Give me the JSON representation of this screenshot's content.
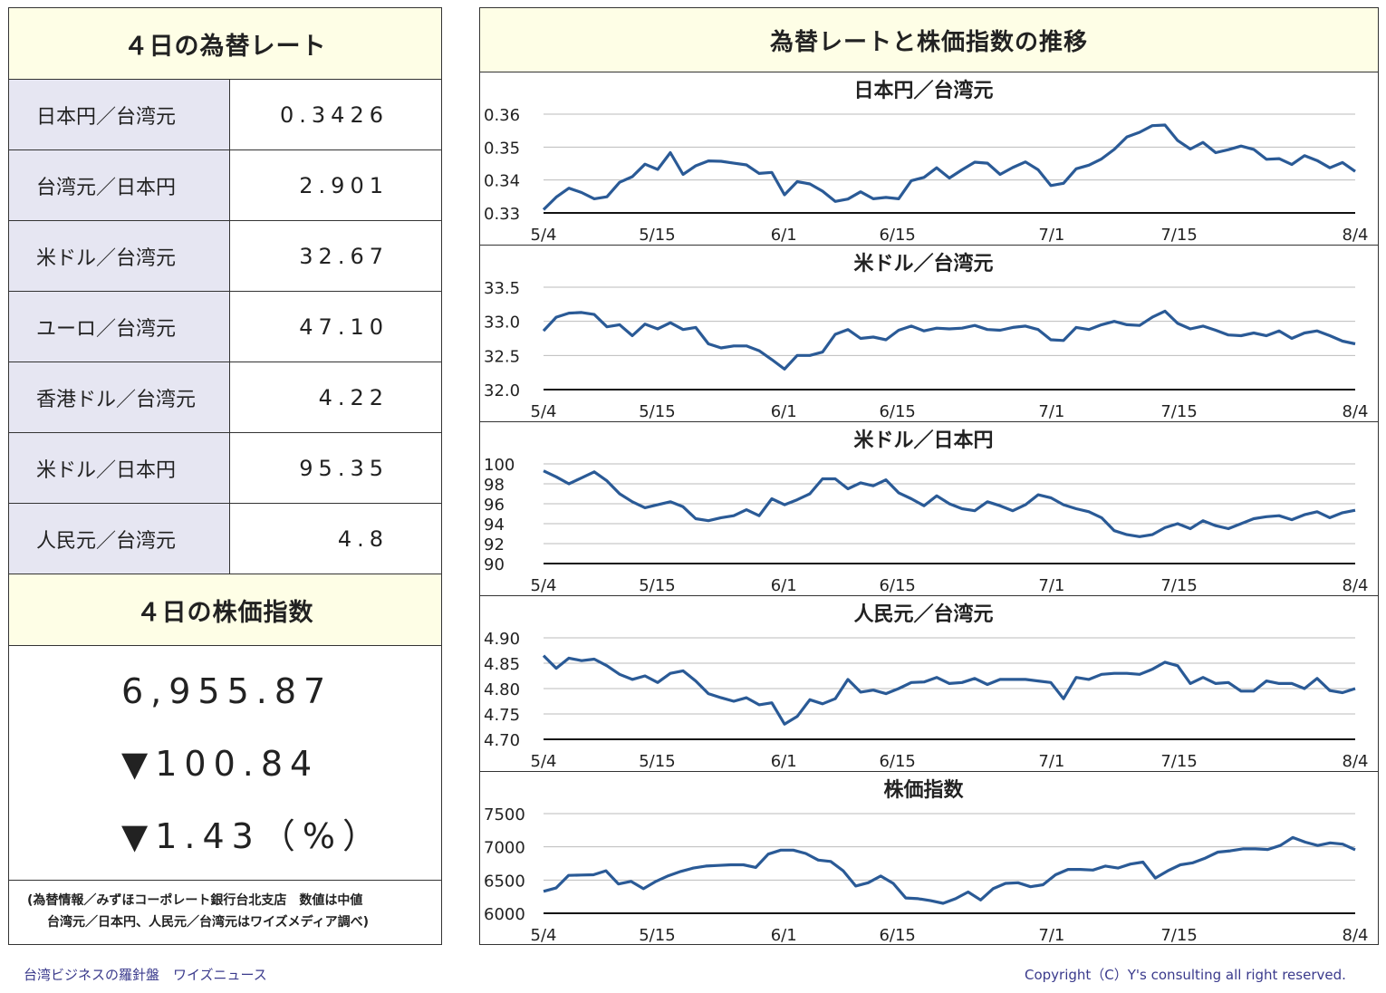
{
  "left": {
    "rates_title": "４日の為替レート",
    "rates": [
      {
        "label": "日本円／台湾元",
        "value": "0.3426"
      },
      {
        "label": "台湾元／日本円",
        "value": "2.901"
      },
      {
        "label": "米ドル／台湾元",
        "value": "32.67"
      },
      {
        "label": "ユーロ／台湾元",
        "value": "47.10"
      },
      {
        "label": "香港ドル／台湾元",
        "value": "4.22"
      },
      {
        "label": "米ドル／日本円",
        "value": "95.35"
      },
      {
        "label": "人民元／台湾元",
        "value": "4.8"
      }
    ],
    "stock_title": "４日の株価指数",
    "stock_value": "6,955.87",
    "stock_change": "▼100.84",
    "stock_change_pct": "▼1.43（%）",
    "note_line1": "(為替情報／みずほコーポレート銀行台北支店　数値は中値",
    "note_line2": "台湾元／日本円、人民元／台湾元はワイズメディア調べ)"
  },
  "right": {
    "title": "為替レートと株価指数の推移"
  },
  "footer": {
    "left": "台湾ビジネスの羅針盤　ワイズニュース",
    "right": "Copyright（C）Y's consulting all right reserved."
  },
  "colors": {
    "line": "#2a5a96",
    "header_bg": "#fefee6",
    "label_bg": "#e6e6f2",
    "footer_text": "#3a3a8c"
  },
  "chart_data": [
    {
      "type": "line",
      "title": "日本円／台湾元",
      "ylim": [
        0.33,
        0.36
      ],
      "yticks": [
        "0.36",
        "0.35",
        "0.34",
        "0.33"
      ],
      "x_tick_labels": [
        "5/4",
        "5/15",
        "6/1",
        "6/15",
        "7/1",
        "7/15",
        "8/4"
      ],
      "grid": true,
      "values": [
        0.331,
        0.3348,
        0.3375,
        0.3362,
        0.3343,
        0.3349,
        0.3393,
        0.341,
        0.3448,
        0.3432,
        0.3483,
        0.3417,
        0.3443,
        0.3458,
        0.3457,
        0.3451,
        0.3446,
        0.342,
        0.3423,
        0.3355,
        0.3395,
        0.3388,
        0.3366,
        0.3335,
        0.3342,
        0.3364,
        0.3343,
        0.3347,
        0.3343,
        0.3398,
        0.3408,
        0.3437,
        0.3406,
        0.3431,
        0.3454,
        0.3451,
        0.3417,
        0.3438,
        0.3455,
        0.3431,
        0.3383,
        0.339,
        0.3434,
        0.3445,
        0.3464,
        0.3493,
        0.3531,
        0.3545,
        0.3565,
        0.3567,
        0.352,
        0.3494,
        0.3514,
        0.3483,
        0.3492,
        0.3503,
        0.3493,
        0.3463,
        0.3465,
        0.3447,
        0.3474,
        0.3459,
        0.3437,
        0.3453,
        0.3426
      ]
    },
    {
      "type": "line",
      "title": "米ドル／台湾元",
      "ylim": [
        32.0,
        33.5
      ],
      "yticks": [
        "33.5",
        "33.0",
        "32.5",
        "32.0"
      ],
      "x_tick_labels": [
        "5/4",
        "5/15",
        "6/1",
        "6/15",
        "7/1",
        "7/15",
        "8/4"
      ],
      "grid": true,
      "values": [
        32.86,
        33.06,
        33.12,
        33.13,
        33.1,
        32.92,
        32.95,
        32.79,
        32.96,
        32.89,
        32.98,
        32.88,
        32.91,
        32.67,
        32.61,
        32.64,
        32.64,
        32.57,
        32.44,
        32.3,
        32.5,
        32.5,
        32.55,
        32.81,
        32.88,
        32.75,
        32.77,
        32.73,
        32.87,
        32.93,
        32.86,
        32.9,
        32.89,
        32.9,
        32.94,
        32.88,
        32.87,
        32.91,
        32.93,
        32.88,
        32.73,
        32.72,
        32.91,
        32.88,
        32.95,
        33.0,
        32.95,
        32.94,
        33.06,
        33.15,
        32.97,
        32.89,
        32.93,
        32.87,
        32.8,
        32.79,
        32.83,
        32.79,
        32.86,
        32.75,
        32.83,
        32.86,
        32.79,
        32.71,
        32.67
      ]
    },
    {
      "type": "line",
      "title": "米ドル／日本円",
      "ylim": [
        90,
        100
      ],
      "yticks": [
        "100",
        "98",
        "96",
        "94",
        "92",
        "90"
      ],
      "x_tick_labels": [
        "5/4",
        "5/15",
        "6/1",
        "6/15",
        "7/1",
        "7/15",
        "8/4"
      ],
      "grid": true,
      "values": [
        99.3,
        98.7,
        98.0,
        98.6,
        99.2,
        98.3,
        97.0,
        96.2,
        95.6,
        95.9,
        96.2,
        95.7,
        94.5,
        94.3,
        94.6,
        94.8,
        95.4,
        94.8,
        96.5,
        95.9,
        96.4,
        97.0,
        98.5,
        98.5,
        97.5,
        98.1,
        97.8,
        98.4,
        97.1,
        96.5,
        95.8,
        96.8,
        96.0,
        95.5,
        95.3,
        96.2,
        95.8,
        95.3,
        95.9,
        96.9,
        96.6,
        95.9,
        95.5,
        95.2,
        94.6,
        93.3,
        92.9,
        92.7,
        92.9,
        93.6,
        94.0,
        93.5,
        94.3,
        93.8,
        93.5,
        94.0,
        94.5,
        94.7,
        94.8,
        94.4,
        94.9,
        95.2,
        94.6,
        95.1,
        95.35
      ]
    },
    {
      "type": "line",
      "title": "人民元／台湾元",
      "ylim": [
        4.7,
        4.9
      ],
      "yticks": [
        "4.90",
        "4.85",
        "4.80",
        "4.75",
        "4.70"
      ],
      "x_tick_labels": [
        "5/4",
        "5/15",
        "6/1",
        "6/15",
        "7/1",
        "7/15",
        "8/4"
      ],
      "grid": true,
      "values": [
        4.865,
        4.84,
        4.86,
        4.855,
        4.858,
        4.845,
        4.828,
        4.818,
        4.825,
        4.812,
        4.83,
        4.835,
        4.815,
        4.79,
        4.782,
        4.775,
        4.782,
        4.768,
        4.772,
        4.73,
        4.745,
        4.778,
        4.77,
        4.78,
        4.818,
        4.793,
        4.797,
        4.79,
        4.8,
        4.812,
        4.813,
        4.822,
        4.81,
        4.812,
        4.82,
        4.808,
        4.818,
        4.818,
        4.818,
        4.815,
        4.812,
        4.78,
        4.822,
        4.818,
        4.828,
        4.83,
        4.83,
        4.828,
        4.838,
        4.852,
        4.845,
        4.81,
        4.822,
        4.81,
        4.812,
        4.795,
        4.795,
        4.815,
        4.81,
        4.81,
        4.8,
        4.82,
        4.796,
        4.792,
        4.8
      ]
    },
    {
      "type": "line",
      "title": "株価指数",
      "ylim": [
        6000,
        7500
      ],
      "yticks": [
        "7500",
        "7000",
        "6500",
        "6000"
      ],
      "x_tick_labels": [
        "5/4",
        "5/15",
        "6/1",
        "6/15",
        "7/1",
        "7/15",
        "8/4"
      ],
      "grid": true,
      "values": [
        6330,
        6380,
        6570,
        6575,
        6580,
        6640,
        6440,
        6480,
        6370,
        6480,
        6565,
        6630,
        6680,
        6710,
        6720,
        6730,
        6730,
        6690,
        6890,
        6950,
        6950,
        6900,
        6800,
        6780,
        6640,
        6410,
        6460,
        6560,
        6450,
        6230,
        6220,
        6190,
        6150,
        6220,
        6320,
        6200,
        6370,
        6450,
        6460,
        6400,
        6430,
        6580,
        6660,
        6660,
        6650,
        6710,
        6680,
        6740,
        6770,
        6530,
        6640,
        6730,
        6760,
        6830,
        6920,
        6940,
        6970,
        6970,
        6960,
        7020,
        7140,
        7070,
        7020,
        7060,
        7040,
        6955.87
      ]
    }
  ]
}
